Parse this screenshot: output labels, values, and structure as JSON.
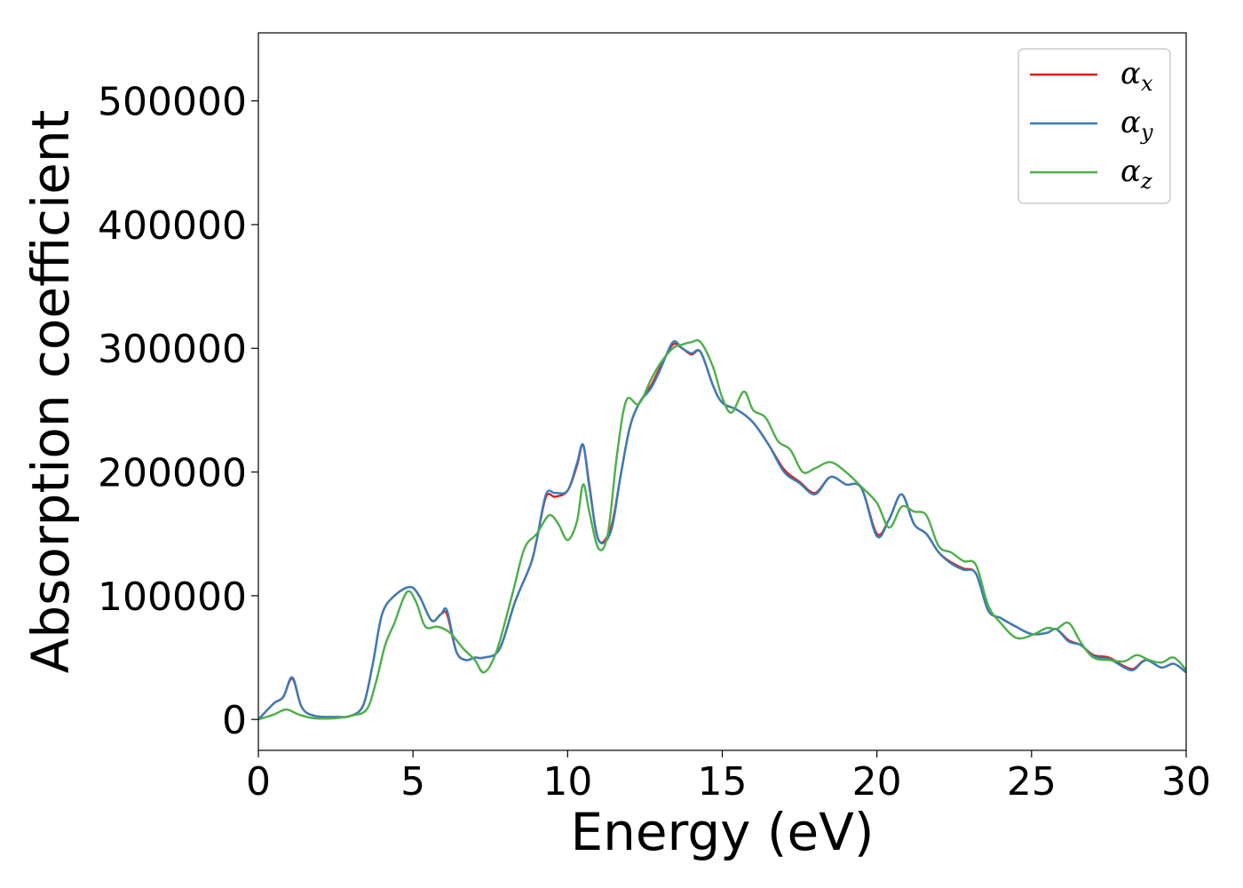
{
  "chart_data": {
    "type": "line",
    "xlabel": "Energy (eV)",
    "ylabel": "Absorption coefficient",
    "xlim": [
      0,
      30
    ],
    "ylim": [
      -25000,
      555000
    ],
    "xticks": [
      0,
      5,
      10,
      15,
      20,
      25,
      30
    ],
    "yticks": [
      0,
      100000,
      200000,
      300000,
      400000,
      500000
    ],
    "xtick_labels": [
      "0",
      "5",
      "10",
      "15",
      "20",
      "25",
      "30"
    ],
    "ytick_labels": [
      "0",
      "100000",
      "200000",
      "300000",
      "400000",
      "500000"
    ],
    "grid": false,
    "legend_position": "top-right",
    "series": [
      {
        "name": "α",
        "subscript": "x",
        "color": "#e41a1c",
        "x": [
          0,
          0.5,
          0.8,
          1.1,
          1.4,
          1.8,
          2.5,
          3.0,
          3.4,
          3.7,
          4.0,
          4.4,
          4.9,
          5.2,
          5.6,
          5.9,
          6.1,
          6.4,
          6.7,
          7.0,
          7.3,
          7.8,
          8.3,
          8.8,
          9.0,
          9.3,
          9.6,
          10.0,
          10.3,
          10.5,
          10.7,
          11.0,
          11.4,
          11.7,
          12.0,
          12.3,
          12.7,
          13.0,
          13.4,
          13.7,
          14.0,
          14.3,
          14.7,
          15.0,
          15.5,
          16.0,
          16.5,
          17.0,
          17.5,
          18.0,
          18.5,
          19.0,
          19.5,
          20.0,
          20.4,
          20.8,
          21.2,
          21.6,
          22.0,
          22.4,
          22.8,
          23.2,
          23.6,
          24.0,
          24.5,
          25.0,
          25.5,
          25.8,
          26.2,
          26.6,
          27.0,
          27.5,
          28.0,
          28.3,
          28.7,
          29.2,
          29.6,
          30.0
        ],
        "values": [
          0,
          13000,
          18000,
          33000,
          10000,
          3000,
          2000,
          3000,
          12000,
          45000,
          85000,
          100000,
          107000,
          100000,
          80000,
          85000,
          85000,
          55000,
          48000,
          50000,
          50000,
          57000,
          95000,
          125000,
          145000,
          180000,
          180000,
          185000,
          205000,
          222000,
          190000,
          145000,
          155000,
          195000,
          235000,
          255000,
          270000,
          285000,
          303000,
          300000,
          295000,
          297000,
          270000,
          256000,
          250000,
          240000,
          222000,
          202000,
          192000,
          183000,
          196000,
          190000,
          187000,
          150000,
          162000,
          182000,
          158000,
          150000,
          135000,
          127000,
          122000,
          118000,
          88000,
          82000,
          75000,
          69000,
          70000,
          73000,
          64000,
          60000,
          52000,
          50000,
          43000,
          41000,
          48000,
          42000,
          45000,
          38000
        ]
      },
      {
        "name": "α",
        "subscript": "y",
        "color": "#377eb8",
        "x": [
          0,
          0.5,
          0.8,
          1.1,
          1.4,
          1.8,
          2.5,
          3.0,
          3.4,
          3.7,
          4.0,
          4.4,
          4.9,
          5.2,
          5.6,
          5.9,
          6.1,
          6.4,
          6.7,
          7.0,
          7.3,
          7.8,
          8.3,
          8.8,
          9.0,
          9.3,
          9.6,
          10.0,
          10.3,
          10.5,
          10.7,
          11.0,
          11.4,
          11.7,
          12.0,
          12.3,
          12.7,
          13.0,
          13.4,
          13.7,
          14.0,
          14.3,
          14.7,
          15.0,
          15.5,
          16.0,
          16.5,
          17.0,
          17.5,
          18.0,
          18.5,
          19.0,
          19.5,
          20.0,
          20.4,
          20.8,
          21.2,
          21.6,
          22.0,
          22.4,
          22.8,
          23.2,
          23.6,
          24.0,
          24.5,
          25.0,
          25.5,
          25.8,
          26.2,
          26.6,
          27.0,
          27.5,
          28.0,
          28.3,
          28.7,
          29.2,
          29.6,
          30.0
        ],
        "values": [
          0,
          13000,
          18000,
          34000,
          10000,
          3000,
          2000,
          3000,
          12000,
          45000,
          85000,
          100000,
          107000,
          100000,
          80000,
          85000,
          88000,
          55000,
          48000,
          50000,
          50000,
          57000,
          95000,
          125000,
          145000,
          182000,
          183000,
          185000,
          207000,
          222000,
          188000,
          145000,
          152000,
          195000,
          235000,
          255000,
          268000,
          283000,
          305000,
          300000,
          296000,
          297000,
          270000,
          256000,
          250000,
          240000,
          222000,
          200000,
          191000,
          182000,
          196000,
          190000,
          187000,
          148000,
          162000,
          182000,
          158000,
          150000,
          135000,
          126000,
          121000,
          118000,
          88000,
          82000,
          75000,
          69000,
          70000,
          73000,
          63000,
          60000,
          51000,
          49000,
          42000,
          40000,
          48000,
          42000,
          45000,
          38000
        ]
      },
      {
        "name": "α",
        "subscript": "z",
        "color": "#4daf4a",
        "x": [
          0,
          0.5,
          0.9,
          1.3,
          1.8,
          2.5,
          3.0,
          3.5,
          3.8,
          4.1,
          4.4,
          4.8,
          5.1,
          5.4,
          5.8,
          6.2,
          6.6,
          7.0,
          7.3,
          7.7,
          8.2,
          8.6,
          9.0,
          9.4,
          9.7,
          10.0,
          10.3,
          10.5,
          10.7,
          11.0,
          11.3,
          11.6,
          11.9,
          12.3,
          12.7,
          13.0,
          13.4,
          13.7,
          14.0,
          14.3,
          14.7,
          15.0,
          15.3,
          15.7,
          16.0,
          16.4,
          16.8,
          17.2,
          17.6,
          18.0,
          18.5,
          19.0,
          19.5,
          20.0,
          20.4,
          20.8,
          21.2,
          21.6,
          22.0,
          22.4,
          22.8,
          23.2,
          23.6,
          24.0,
          24.5,
          25.0,
          25.5,
          25.8,
          26.2,
          26.6,
          27.0,
          27.5,
          28.0,
          28.4,
          28.8,
          29.2,
          29.6,
          30.0
        ],
        "values": [
          0,
          4000,
          8000,
          4000,
          1000,
          1000,
          3000,
          8000,
          30000,
          60000,
          78000,
          103000,
          95000,
          75000,
          75000,
          70000,
          58000,
          48000,
          38000,
          55000,
          100000,
          138000,
          150000,
          165000,
          158000,
          145000,
          160000,
          190000,
          168000,
          138000,
          150000,
          215000,
          258000,
          255000,
          275000,
          288000,
          300000,
          303000,
          305000,
          305000,
          285000,
          260000,
          248000,
          265000,
          250000,
          244000,
          225000,
          218000,
          200000,
          203000,
          208000,
          200000,
          188000,
          175000,
          155000,
          172000,
          168000,
          165000,
          140000,
          135000,
          128000,
          125000,
          92000,
          78000,
          66000,
          68000,
          74000,
          73000,
          78000,
          62000,
          50000,
          48000,
          47000,
          52000,
          48000,
          46000,
          50000,
          40000
        ]
      }
    ]
  }
}
